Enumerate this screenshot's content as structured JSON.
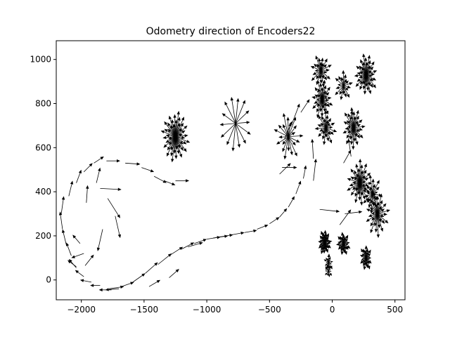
{
  "chart_data": {
    "type": "quiver",
    "title": "Odometry direction of Encoders22",
    "xlabel": "",
    "ylabel": "",
    "xlim": [
      -2200,
      580
    ],
    "ylim": [
      -90,
      1085
    ],
    "xticks": [
      -2000,
      -1500,
      -1000,
      -500,
      0,
      500
    ],
    "yticks": [
      0,
      200,
      400,
      600,
      800,
      1000
    ],
    "xtick_labels": [
      "−2000",
      "−1500",
      "−1000",
      "−500",
      "0",
      "500"
    ],
    "ytick_labels": [
      "0",
      "200",
      "400",
      "600",
      "800",
      "1000"
    ],
    "grid": false,
    "color": "#000000",
    "path_arrows": [
      {
        "x": -1760,
        "y": -45,
        "dx": -100,
        "dy": 0
      },
      {
        "x": -1700,
        "y": -40,
        "dx": -110,
        "dy": -5
      },
      {
        "x": -1850,
        "y": -25,
        "dx": -80,
        "dy": 0
      },
      {
        "x": -1920,
        "y": -10,
        "dx": -90,
        "dy": 10
      },
      {
        "x": -1980,
        "y": 15,
        "dx": -70,
        "dy": 30
      },
      {
        "x": -2040,
        "y": 55,
        "dx": -60,
        "dy": 40
      },
      {
        "x": -2080,
        "y": 110,
        "dx": -40,
        "dy": 60
      },
      {
        "x": -2120,
        "y": 160,
        "dx": -30,
        "dy": 70
      },
      {
        "x": -2150,
        "y": 230,
        "dx": -20,
        "dy": 80
      },
      {
        "x": -2160,
        "y": 300,
        "dx": 20,
        "dy": 80
      },
      {
        "x": -2100,
        "y": 380,
        "dx": 30,
        "dy": 70
      },
      {
        "x": -2040,
        "y": 440,
        "dx": 40,
        "dy": 60
      },
      {
        "x": -1980,
        "y": 490,
        "dx": 70,
        "dy": 40
      },
      {
        "x": -1900,
        "y": 530,
        "dx": 80,
        "dy": 30
      },
      {
        "x": -1800,
        "y": 540,
        "dx": 110,
        "dy": 0
      },
      {
        "x": -1650,
        "y": 530,
        "dx": 120,
        "dy": -5
      },
      {
        "x": -1520,
        "y": 510,
        "dx": 100,
        "dy": -20
      },
      {
        "x": -1420,
        "y": 470,
        "dx": 100,
        "dy": -30
      },
      {
        "x": -1340,
        "y": 450,
        "dx": 90,
        "dy": -20
      },
      {
        "x": -1250,
        "y": 450,
        "dx": 110,
        "dy": 0
      },
      {
        "x": -2010,
        "y": 165,
        "dx": -60,
        "dy": 40
      },
      {
        "x": -2040,
        "y": 60,
        "dx": -70,
        "dy": 30
      },
      {
        "x": -1960,
        "y": 350,
        "dx": 10,
        "dy": 80
      },
      {
        "x": -1880,
        "y": 440,
        "dx": 30,
        "dy": 70
      },
      {
        "x": -1850,
        "y": 415,
        "dx": 170,
        "dy": -5
      },
      {
        "x": -1790,
        "y": 370,
        "dx": 100,
        "dy": -90
      },
      {
        "x": -1730,
        "y": 290,
        "dx": 40,
        "dy": -100
      },
      {
        "x": -1830,
        "y": 230,
        "dx": -40,
        "dy": -100
      },
      {
        "x": -1980,
        "y": 120,
        "dx": -100,
        "dy": -20
      },
      {
        "x": -1970,
        "y": 65,
        "dx": 70,
        "dy": 50
      },
      {
        "x": -1780,
        "y": -40,
        "dx": 120,
        "dy": 10
      },
      {
        "x": -1680,
        "y": -30,
        "dx": 100,
        "dy": 20
      },
      {
        "x": -1590,
        "y": -10,
        "dx": 100,
        "dy": 40
      },
      {
        "x": -1490,
        "y": 30,
        "dx": 100,
        "dy": 50
      },
      {
        "x": -1390,
        "y": 70,
        "dx": 110,
        "dy": 50
      },
      {
        "x": -1300,
        "y": 110,
        "dx": 110,
        "dy": 40
      },
      {
        "x": -1200,
        "y": 140,
        "dx": 100,
        "dy": 30
      },
      {
        "x": -1100,
        "y": 165,
        "dx": 100,
        "dy": 20
      },
      {
        "x": -1000,
        "y": 185,
        "dx": 110,
        "dy": 10
      },
      {
        "x": -900,
        "y": 195,
        "dx": 110,
        "dy": 10
      },
      {
        "x": -800,
        "y": 205,
        "dx": 100,
        "dy": 10
      },
      {
        "x": -700,
        "y": 215,
        "dx": 100,
        "dy": 10
      },
      {
        "x": -600,
        "y": 230,
        "dx": 90,
        "dy": 20
      },
      {
        "x": -500,
        "y": 255,
        "dx": 80,
        "dy": 30
      },
      {
        "x": -420,
        "y": 285,
        "dx": 60,
        "dy": 40
      },
      {
        "x": -350,
        "y": 330,
        "dx": 50,
        "dy": 50
      },
      {
        "x": -290,
        "y": 390,
        "dx": 40,
        "dy": 60
      },
      {
        "x": -230,
        "y": 460,
        "dx": 20,
        "dy": 60
      },
      {
        "x": -1300,
        "y": 10,
        "dx": 80,
        "dy": 40
      },
      {
        "x": -1460,
        "y": -30,
        "dx": 90,
        "dy": 30
      },
      {
        "x": -1150,
        "y": 150,
        "dx": 120,
        "dy": 20
      },
      {
        "x": -950,
        "y": 190,
        "dx": 120,
        "dy": 10
      },
      {
        "x": -150,
        "y": 450,
        "dx": 20,
        "dy": 100
      },
      {
        "x": -150,
        "y": 550,
        "dx": -10,
        "dy": 90
      },
      {
        "x": -400,
        "y": 510,
        "dx": 120,
        "dy": 0
      },
      {
        "x": -420,
        "y": 480,
        "dx": 90,
        "dy": 50
      },
      {
        "x": -380,
        "y": 640,
        "dx": 60,
        "dy": 80
      },
      {
        "x": -320,
        "y": 710,
        "dx": 60,
        "dy": 90
      },
      {
        "x": -250,
        "y": 760,
        "dx": 70,
        "dy": 60
      },
      {
        "x": 100,
        "y": 300,
        "dx": 140,
        "dy": 10
      },
      {
        "x": 60,
        "y": 250,
        "dx": 90,
        "dy": 70
      },
      {
        "x": -100,
        "y": 320,
        "dx": 160,
        "dy": -10
      },
      {
        "x": 130,
        "y": 680,
        "dx": 30,
        "dy": 90
      },
      {
        "x": 150,
        "y": 560,
        "dx": -20,
        "dy": 80
      },
      {
        "x": 90,
        "y": 530,
        "dx": 60,
        "dy": 60
      }
    ],
    "stars": [
      {
        "cx": -1250,
        "cy": 650,
        "count": 44,
        "len_min": 60,
        "len_max": 120,
        "start": 0.2
      },
      {
        "cx": -770,
        "cy": 710,
        "count": 14,
        "len_min": 115,
        "len_max": 135,
        "start": 0.05
      },
      {
        "cx": -80,
        "cy": 820,
        "count": 30,
        "len_min": 45,
        "len_max": 95,
        "start": 0.3
      },
      {
        "cx": -50,
        "cy": 690,
        "count": 24,
        "len_min": 40,
        "len_max": 90,
        "start": 1.1
      },
      {
        "cx": 170,
        "cy": 690,
        "count": 30,
        "len_min": 50,
        "len_max": 100,
        "start": 0.7
      },
      {
        "cx": 270,
        "cy": 930,
        "count": 36,
        "len_min": 50,
        "len_max": 100,
        "start": 0.4
      },
      {
        "cx": -90,
        "cy": 950,
        "count": 24,
        "len_min": 40,
        "len_max": 90,
        "start": 1.6
      },
      {
        "cx": 90,
        "cy": 880,
        "count": 18,
        "len_min": 40,
        "len_max": 80,
        "start": 0.9
      },
      {
        "cx": 220,
        "cy": 440,
        "count": 36,
        "len_min": 50,
        "len_max": 110,
        "start": 0.15
      },
      {
        "cx": 360,
        "cy": 300,
        "count": 30,
        "len_min": 50,
        "len_max": 110,
        "start": 0.8
      },
      {
        "cx": 320,
        "cy": 390,
        "count": 20,
        "len_min": 40,
        "len_max": 90,
        "start": 2.1
      },
      {
        "cx": -60,
        "cy": 170,
        "count": 32,
        "len_min": 30,
        "len_max": 60,
        "start": 0.5
      },
      {
        "cx": 90,
        "cy": 165,
        "count": 26,
        "len_min": 30,
        "len_max": 60,
        "start": 1.3
      },
      {
        "cx": 270,
        "cy": 100,
        "count": 24,
        "len_min": 30,
        "len_max": 60,
        "start": 0.25
      },
      {
        "cx": -30,
        "cy": 80,
        "count": 14,
        "len_min": 20,
        "len_max": 45,
        "start": 1.9
      },
      {
        "cx": -30,
        "cy": 40,
        "count": 10,
        "len_min": 20,
        "len_max": 35,
        "start": 0.6
      },
      {
        "cx": -350,
        "cy": 650,
        "count": 20,
        "len_min": 60,
        "len_max": 120,
        "start": 0.35
      }
    ]
  }
}
